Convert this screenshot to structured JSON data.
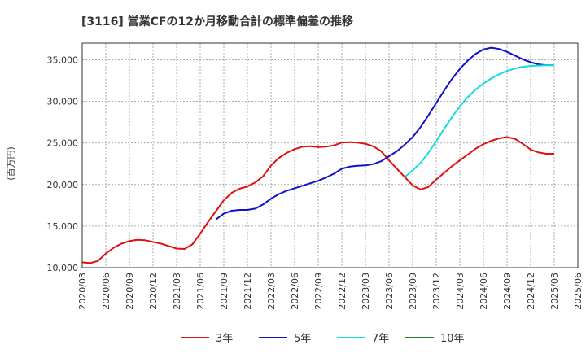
{
  "chart_data": {
    "type": "line",
    "title": "[3116]  営業CFの12か月移動合計の標準偏差の推移",
    "ylabel": "(百万円)",
    "xlabel": "",
    "ylim": [
      10000,
      37000
    ],
    "yticks": [
      10000,
      15000,
      20000,
      25000,
      30000,
      35000
    ],
    "ytick_labels": [
      "10,000",
      "15,000",
      "20,000",
      "25,000",
      "30,000",
      "35,000"
    ],
    "xlim": [
      "2020-03",
      "2025-06"
    ],
    "xtick_labels": [
      "2020/03",
      "2020/06",
      "2020/09",
      "2020/12",
      "2021/03",
      "2021/06",
      "2021/09",
      "2021/12",
      "2022/03",
      "2022/06",
      "2022/09",
      "2022/12",
      "2023/03",
      "2023/06",
      "2023/09",
      "2023/12",
      "2024/03",
      "2024/06",
      "2024/09",
      "2024/12",
      "2025/03",
      "2025/06"
    ],
    "grid": true,
    "legend_position": "bottom",
    "series": [
      {
        "name": "3年",
        "color": "#dd1111",
        "x": [
          "2020-03",
          "2020-04",
          "2020-05",
          "2020-06",
          "2020-07",
          "2020-08",
          "2020-09",
          "2020-10",
          "2020-11",
          "2020-12",
          "2021-01",
          "2021-02",
          "2021-03",
          "2021-04",
          "2021-05",
          "2021-06",
          "2021-07",
          "2021-08",
          "2021-09",
          "2021-10",
          "2021-11",
          "2021-12",
          "2022-01",
          "2022-02",
          "2022-03",
          "2022-04",
          "2022-05",
          "2022-06",
          "2022-07",
          "2022-08",
          "2022-09",
          "2022-10",
          "2022-11",
          "2022-12",
          "2023-01",
          "2023-02",
          "2023-03",
          "2023-04",
          "2023-05",
          "2023-06",
          "2023-07",
          "2023-08",
          "2023-09",
          "2023-10",
          "2023-11",
          "2023-12",
          "2024-01",
          "2024-02",
          "2024-03",
          "2024-04",
          "2024-05",
          "2024-06",
          "2024-07",
          "2024-08",
          "2024-09",
          "2024-10",
          "2024-11",
          "2024-12",
          "2025-01",
          "2025-02",
          "2025-03"
        ],
        "values": [
          10650,
          10550,
          10800,
          11700,
          12400,
          12900,
          13200,
          13350,
          13300,
          13100,
          12900,
          12600,
          12300,
          12250,
          12800,
          14100,
          15500,
          16800,
          18100,
          19000,
          19500,
          19750,
          20250,
          21000,
          22300,
          23200,
          23800,
          24250,
          24550,
          24600,
          24500,
          24550,
          24700,
          25050,
          25100,
          25050,
          24900,
          24600,
          24000,
          22900,
          21900,
          20900,
          19900,
          19400,
          19700,
          20600,
          21400,
          22200,
          22900,
          23600,
          24300,
          24850,
          25250,
          25550,
          25700,
          25500,
          24900,
          24200,
          23850,
          23700,
          23700
        ]
      },
      {
        "name": "5年",
        "color": "#1111cc",
        "x": [
          "2021-08",
          "2021-09",
          "2021-10",
          "2021-11",
          "2021-12",
          "2022-01",
          "2022-02",
          "2022-03",
          "2022-04",
          "2022-05",
          "2022-06",
          "2022-07",
          "2022-08",
          "2022-09",
          "2022-10",
          "2022-11",
          "2022-12",
          "2023-01",
          "2023-02",
          "2023-03",
          "2023-04",
          "2023-05",
          "2023-06",
          "2023-07",
          "2023-08",
          "2023-09",
          "2023-10",
          "2023-11",
          "2023-12",
          "2024-01",
          "2024-02",
          "2024-03",
          "2024-04",
          "2024-05",
          "2024-06",
          "2024-07",
          "2024-08",
          "2024-09",
          "2024-10",
          "2024-11",
          "2024-12",
          "2025-01",
          "2025-02",
          "2025-03"
        ],
        "values": [
          15800,
          16500,
          16850,
          16950,
          16950,
          17100,
          17600,
          18300,
          18850,
          19250,
          19550,
          19850,
          20150,
          20450,
          20850,
          21300,
          21900,
          22150,
          22250,
          22300,
          22450,
          22800,
          23400,
          24000,
          24800,
          25700,
          26900,
          28300,
          29800,
          31300,
          32700,
          33900,
          34900,
          35700,
          36250,
          36450,
          36300,
          35950,
          35500,
          35050,
          34700,
          34450,
          34350,
          34350
        ]
      },
      {
        "name": "7年",
        "color": "#11dddd",
        "x": [
          "2023-08",
          "2023-09",
          "2023-10",
          "2023-11",
          "2023-12",
          "2024-01",
          "2024-02",
          "2024-03",
          "2024-04",
          "2024-05",
          "2024-06",
          "2024-07",
          "2024-08",
          "2024-09",
          "2024-10",
          "2024-11",
          "2024-12",
          "2025-01",
          "2025-02",
          "2025-03"
        ],
        "values": [
          20900,
          21700,
          22600,
          23800,
          25200,
          26700,
          28100,
          29400,
          30500,
          31400,
          32150,
          32750,
          33250,
          33650,
          33950,
          34150,
          34250,
          34300,
          34350,
          34350
        ]
      },
      {
        "name": "10年",
        "color": "#228822",
        "x": [],
        "values": []
      }
    ]
  }
}
